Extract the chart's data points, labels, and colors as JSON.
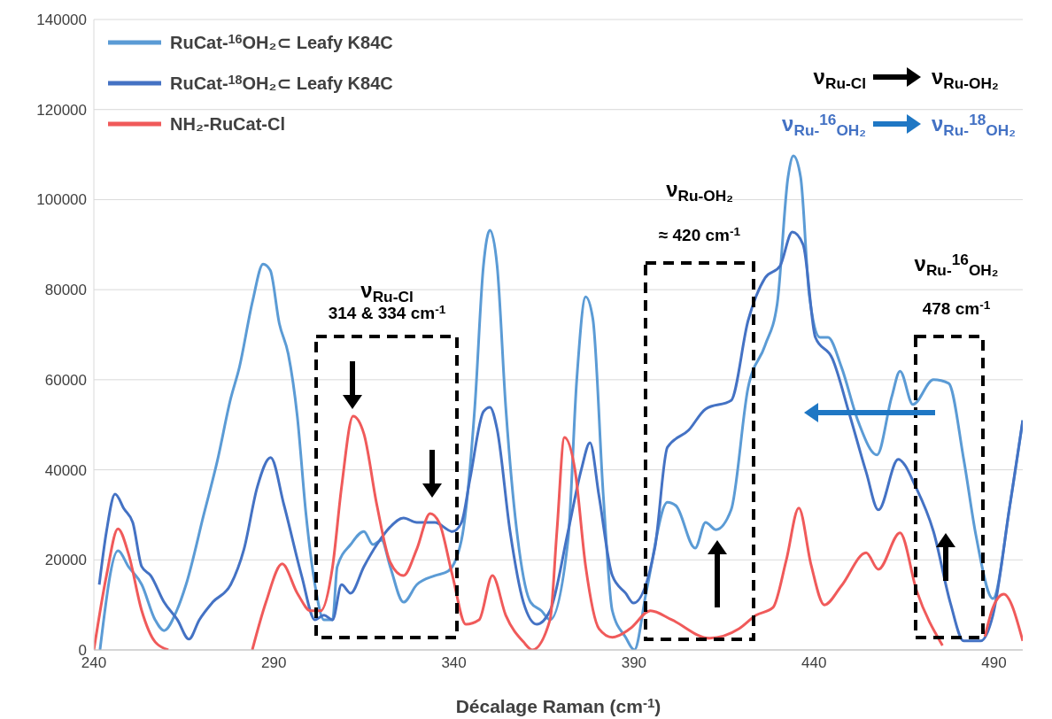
{
  "chart_data": {
    "type": "line",
    "xlabel": "Décalage Raman (cm$^{-1}$)",
    "xlim": [
      240,
      498
    ],
    "xticks": [
      240,
      290,
      340,
      390,
      440,
      490
    ],
    "ylim": [
      0,
      140000
    ],
    "yticks": [
      0,
      20000,
      40000,
      60000,
      80000,
      100000,
      120000,
      140000
    ],
    "grid": "y",
    "legend": "top left",
    "series": [
      {
        "name": "RuCat-$^{16}$OH₂⊂ Leafy K84C",
        "color": "#5b9bd5",
        "x": [
          241.7,
          246.7,
          249.6,
          253.3,
          257,
          259.5,
          263,
          265.6,
          270.6,
          274.3,
          278,
          280.4,
          284.1,
          287,
          289,
          291.5,
          294,
          296.5,
          298.9,
          301.4,
          303.9,
          306.3,
          307.6,
          311.3,
          315,
          317.5,
          319.9,
          322.3,
          326,
          329.7,
          334.7,
          338.4,
          342.1,
          345.8,
          348.2,
          350,
          352,
          354.4,
          358.1,
          361.3,
          364.3,
          366.7,
          371.7,
          374.1,
          376.6,
          378.6,
          381.5,
          384,
          387.7,
          390.1,
          393.5,
          399.3,
          401.7,
          407,
          409.9,
          412.8,
          417,
          421.7,
          426.4,
          429.8,
          432.8,
          434.3,
          436.3,
          438.7,
          441.7,
          443.9,
          447.6,
          452.3,
          457.5,
          461.6,
          463.9,
          467.5,
          473.2,
          477.4,
          481.6,
          485,
          489.7,
          494.4,
          498
        ],
        "values": [
          0,
          22000,
          18500,
          14500,
          6700,
          4300,
          8700,
          14500,
          30300,
          42000,
          55800,
          62700,
          77500,
          85700,
          84300,
          72500,
          65700,
          51900,
          30300,
          14500,
          6700,
          6700,
          18500,
          23400,
          26300,
          23400,
          24400,
          18500,
          10600,
          14500,
          16500,
          17500,
          24400,
          53900,
          85300,
          93200,
          85300,
          53900,
          22400,
          10600,
          8700,
          6700,
          24400,
          59800,
          78400,
          73500,
          34200,
          8700,
          2800,
          0,
          13200,
          32800,
          32000,
          22600,
          28300,
          26700,
          31100,
          58200,
          67600,
          76900,
          105000,
          109700,
          105000,
          78800,
          69400,
          69400,
          62900,
          50700,
          43300,
          56200,
          61900,
          54500,
          60000,
          59200,
          42300,
          25400,
          11400,
          32000,
          51000
        ]
      },
      {
        "name": "RuCat-$^{18}$OH₂⊂ Leafy K84C",
        "color": "#4472c4",
        "x": [
          241.5,
          243.5,
          245.9,
          248.4,
          250.8,
          253.3,
          255.8,
          259.5,
          263.2,
          266.4,
          269.3,
          273,
          278,
          281.7,
          285.4,
          289.1,
          292.8,
          297.7,
          301.4,
          303.9,
          306.3,
          308.8,
          311.3,
          315,
          318.6,
          322.3,
          326,
          329.7,
          334.7,
          339.6,
          342.1,
          344.5,
          348.2,
          350,
          352,
          355.6,
          359.3,
          363,
          366.7,
          371.7,
          375.4,
          377.8,
          380.3,
          384,
          387.7,
          389.9,
          395.8,
          399.3,
          405.2,
          409.9,
          417,
          421.7,
          426.4,
          430.6,
          434,
          437,
          440.4,
          445.1,
          449.8,
          454.5,
          457.9,
          463.4,
          468.5,
          473.2,
          477.9,
          481.6,
          486.3,
          489.7,
          494.4,
          498
        ],
        "values": [
          14500,
          26300,
          34600,
          31300,
          28300,
          18500,
          16500,
          10600,
          6700,
          2400,
          6700,
          10600,
          14500,
          22400,
          36200,
          42700,
          32200,
          16500,
          6700,
          7700,
          6700,
          14500,
          12600,
          18500,
          23400,
          27300,
          29300,
          28300,
          28300,
          26300,
          28300,
          38100,
          52900,
          53900,
          49000,
          26300,
          10600,
          5700,
          8700,
          26300,
          40100,
          46000,
          34200,
          16500,
          12600,
          10400,
          22600,
          45000,
          48800,
          53500,
          55400,
          73100,
          82600,
          85300,
          92800,
          90000,
          69400,
          64700,
          52500,
          39500,
          31100,
          42300,
          35800,
          26300,
          10400,
          2000,
          2000,
          7700,
          32000,
          51000
        ]
      },
      {
        "name": "NH₂-RuCat-Cl",
        "color": "#f05a5a",
        "x": [
          240,
          243.5,
          246.7,
          249.6,
          253.3,
          257,
          260.7,
          272,
          284,
          287.8,
          292.3,
          296.5,
          300.2,
          303,
          306.3,
          308.8,
          312,
          315,
          318.6,
          322.3,
          326,
          329.7,
          333.4,
          335.9,
          339.6,
          343.3,
          347,
          350.7,
          354.4,
          359.3,
          361.8,
          366.7,
          368.6,
          370.7,
          373.6,
          376.6,
          380.3,
          384,
          388.9,
          394.6,
          400.5,
          411,
          419.2,
          423.9,
          428.6,
          432.3,
          435.8,
          439.2,
          442.9,
          447.6,
          454.5,
          457.9,
          463.9,
          468.5,
          475.7,
          481,
          487.5,
          489.7,
          492.7,
          498
        ],
        "values": [
          0,
          16500,
          26900,
          21400,
          8700,
          1800,
          0,
          null,
          0,
          10600,
          19100,
          12600,
          8700,
          8700,
          18500,
          36200,
          51900,
          48000,
          32200,
          19500,
          16500,
          22400,
          30300,
          28300,
          16500,
          5700,
          6700,
          16500,
          7700,
          1800,
          0,
          6700,
          26300,
          47200,
          40100,
          18500,
          4700,
          2800,
          4700,
          8700,
          6700,
          2600,
          4700,
          7700,
          9400,
          19900,
          31500,
          18900,
          10000,
          14200,
          21600,
          17900,
          26000,
          13200,
          1000,
          null,
          3000,
          9400,
          12400,
          2000
        ]
      }
    ],
    "annotations": [
      "ν$_{Ru-Cl}$",
      "314 & 334 cm$^{-1}$",
      "ν$_{Ru-OH₂}$",
      "≈ 420 cm$^{-1}$",
      "ν$_{Ru-}$$^{16}$$_{OH₂}$",
      "478 cm$^{-1}$",
      "ν$_{Ru-Cl}$",
      "ν$_{Ru-OH₂}$",
      "ν$_{Ru-}$$^{16}$$_{OH₂}$",
      "ν$_{Ru-}$$^{18}$$_{OH₂}$"
    ]
  }
}
